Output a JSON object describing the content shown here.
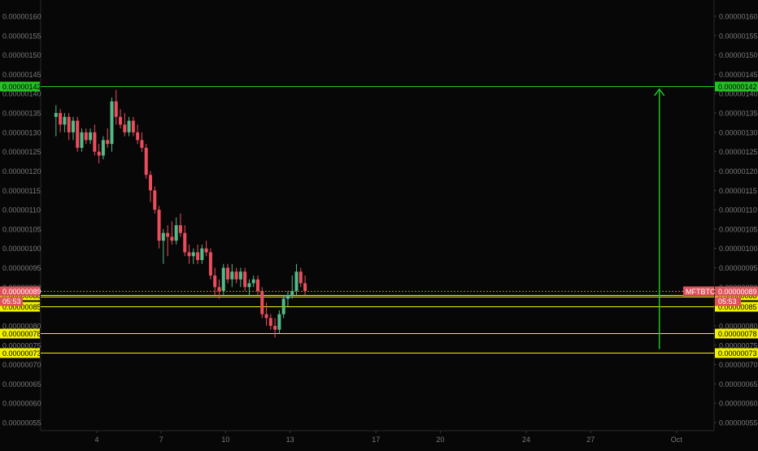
{
  "chart_data": {
    "type": "candlestick",
    "symbol": "MFTBTC",
    "countdown": "05:53",
    "price_axis": {
      "min": 5e-07,
      "max": 1.62e-06,
      "ticks": [
        "0.00000055",
        "0.00000060",
        "0.00000065",
        "0.00000070",
        "0.00000075",
        "0.00000080",
        "0.00000085",
        "0.00000090",
        "0.00000095",
        "0.00000100",
        "0.00000105",
        "0.00000110",
        "0.00000115",
        "0.00000120",
        "0.00000125",
        "0.00000130",
        "0.00000135",
        "0.00000140",
        "0.00000145",
        "0.00000150",
        "0.00000155",
        "0.00000160"
      ]
    },
    "time_axis": {
      "labels": [
        {
          "text": "4",
          "day": 4
        },
        {
          "text": "7",
          "day": 7
        },
        {
          "text": "10",
          "day": 10
        },
        {
          "text": "13",
          "day": 13
        },
        {
          "text": "17",
          "day": 17
        },
        {
          "text": "20",
          "day": 20
        },
        {
          "text": "24",
          "day": 24
        },
        {
          "text": "27",
          "day": 27
        },
        {
          "text": "Oct",
          "day": 31
        }
      ]
    },
    "current_price": {
      "label": "0.00000089",
      "value": 8.9e-07
    },
    "levels": [
      {
        "label": "0.00000142",
        "value": 1.42e-06,
        "color": "#22c322",
        "text_color": "#000000"
      },
      {
        "label": "0.00000088",
        "value": 8.8e-07,
        "color": "#f2f200",
        "text_color": "#000000"
      },
      {
        "label": "0.00000085",
        "value": 8.5e-07,
        "color": "#f2f200",
        "text_color": "#000000"
      },
      {
        "label": "0.00000078",
        "value": 7.8e-07,
        "color": "#f2f200",
        "text_color": "#000000"
      },
      {
        "label": "0.00000073",
        "value": 7.3e-07,
        "color": "#f2f200",
        "text_color": "#000000"
      }
    ],
    "arrow": {
      "day_x": 30.2,
      "from": 7.4e-07,
      "to": 1.42e-06,
      "color": "#22c322"
    },
    "candles": [
      {
        "t": 2.1,
        "o": 134,
        "h": 137,
        "l": 129,
        "c": 135
      },
      {
        "t": 2.3,
        "o": 135,
        "h": 136,
        "l": 130,
        "c": 132
      },
      {
        "t": 2.5,
        "o": 132,
        "h": 135,
        "l": 130,
        "c": 134
      },
      {
        "t": 2.7,
        "o": 134,
        "h": 135,
        "l": 128,
        "c": 130
      },
      {
        "t": 2.9,
        "o": 130,
        "h": 134,
        "l": 128,
        "c": 133
      },
      {
        "t": 3.1,
        "o": 133,
        "h": 134,
        "l": 125,
        "c": 126
      },
      {
        "t": 3.3,
        "o": 126,
        "h": 131,
        "l": 125,
        "c": 130
      },
      {
        "t": 3.5,
        "o": 130,
        "h": 131,
        "l": 127,
        "c": 128
      },
      {
        "t": 3.7,
        "o": 128,
        "h": 131,
        "l": 127,
        "c": 130
      },
      {
        "t": 3.9,
        "o": 130,
        "h": 132,
        "l": 124,
        "c": 125
      },
      {
        "t": 4.1,
        "o": 125,
        "h": 127,
        "l": 122,
        "c": 124
      },
      {
        "t": 4.3,
        "o": 124,
        "h": 129,
        "l": 123,
        "c": 128
      },
      {
        "t": 4.5,
        "o": 128,
        "h": 131,
        "l": 126,
        "c": 127
      },
      {
        "t": 4.7,
        "o": 127,
        "h": 139,
        "l": 125,
        "c": 138
      },
      {
        "t": 4.9,
        "o": 138,
        "h": 141,
        "l": 132,
        "c": 134
      },
      {
        "t": 5.1,
        "o": 134,
        "h": 136,
        "l": 131,
        "c": 132
      },
      {
        "t": 5.3,
        "o": 132,
        "h": 135,
        "l": 129,
        "c": 130
      },
      {
        "t": 5.5,
        "o": 130,
        "h": 134,
        "l": 129,
        "c": 133
      },
      {
        "t": 5.7,
        "o": 133,
        "h": 134,
        "l": 129,
        "c": 130
      },
      {
        "t": 5.9,
        "o": 130,
        "h": 132,
        "l": 127,
        "c": 128
      },
      {
        "t": 6.1,
        "o": 128,
        "h": 130,
        "l": 125,
        "c": 126
      },
      {
        "t": 6.3,
        "o": 126,
        "h": 127,
        "l": 118,
        "c": 119
      },
      {
        "t": 6.5,
        "o": 119,
        "h": 120,
        "l": 112,
        "c": 115
      },
      {
        "t": 6.7,
        "o": 115,
        "h": 116,
        "l": 109,
        "c": 110
      },
      {
        "t": 6.9,
        "o": 110,
        "h": 111,
        "l": 100,
        "c": 102
      },
      {
        "t": 7.1,
        "o": 102,
        "h": 105,
        "l": 96,
        "c": 104
      },
      {
        "t": 7.3,
        "o": 104,
        "h": 106,
        "l": 98,
        "c": 103
      },
      {
        "t": 7.5,
        "o": 103,
        "h": 107,
        "l": 101,
        "c": 102
      },
      {
        "t": 7.7,
        "o": 102,
        "h": 108,
        "l": 101,
        "c": 106
      },
      {
        "t": 7.9,
        "o": 106,
        "h": 109,
        "l": 103,
        "c": 104
      },
      {
        "t": 8.1,
        "o": 104,
        "h": 106,
        "l": 98,
        "c": 99
      },
      {
        "t": 8.3,
        "o": 99,
        "h": 101,
        "l": 96,
        "c": 98
      },
      {
        "t": 8.5,
        "o": 98,
        "h": 100,
        "l": 96,
        "c": 99
      },
      {
        "t": 8.7,
        "o": 99,
        "h": 101,
        "l": 96,
        "c": 97
      },
      {
        "t": 8.9,
        "o": 97,
        "h": 101,
        "l": 96,
        "c": 100
      },
      {
        "t": 9.1,
        "o": 100,
        "h": 102,
        "l": 98,
        "c": 99
      },
      {
        "t": 9.3,
        "o": 99,
        "h": 100,
        "l": 92,
        "c": 93
      },
      {
        "t": 9.5,
        "o": 93,
        "h": 95,
        "l": 88,
        "c": 90
      },
      {
        "t": 9.7,
        "o": 90,
        "h": 92,
        "l": 87,
        "c": 89
      },
      {
        "t": 9.9,
        "o": 89,
        "h": 96,
        "l": 88,
        "c": 95
      },
      {
        "t": 10.1,
        "o": 95,
        "h": 96,
        "l": 91,
        "c": 92
      },
      {
        "t": 10.3,
        "o": 92,
        "h": 96,
        "l": 90,
        "c": 94
      },
      {
        "t": 10.5,
        "o": 94,
        "h": 95,
        "l": 91,
        "c": 92
      },
      {
        "t": 10.7,
        "o": 92,
        "h": 95,
        "l": 90,
        "c": 94
      },
      {
        "t": 10.9,
        "o": 94,
        "h": 95,
        "l": 89,
        "c": 90
      },
      {
        "t": 11.1,
        "o": 90,
        "h": 92,
        "l": 88,
        "c": 91
      },
      {
        "t": 11.3,
        "o": 91,
        "h": 93,
        "l": 90,
        "c": 92
      },
      {
        "t": 11.5,
        "o": 92,
        "h": 93,
        "l": 88,
        "c": 89
      },
      {
        "t": 11.7,
        "o": 89,
        "h": 90,
        "l": 82,
        "c": 83
      },
      {
        "t": 11.9,
        "o": 83,
        "h": 86,
        "l": 80,
        "c": 82
      },
      {
        "t": 12.1,
        "o": 82,
        "h": 83,
        "l": 79,
        "c": 80
      },
      {
        "t": 12.3,
        "o": 80,
        "h": 82,
        "l": 77,
        "c": 79
      },
      {
        "t": 12.5,
        "o": 79,
        "h": 84,
        "l": 78,
        "c": 83
      },
      {
        "t": 12.7,
        "o": 83,
        "h": 88,
        "l": 82,
        "c": 87
      },
      {
        "t": 12.9,
        "o": 87,
        "h": 89,
        "l": 85,
        "c": 88
      },
      {
        "t": 13.1,
        "o": 88,
        "h": 93,
        "l": 87,
        "c": 89
      },
      {
        "t": 13.3,
        "o": 89,
        "h": 96,
        "l": 88,
        "c": 94
      },
      {
        "t": 13.5,
        "o": 94,
        "h": 95,
        "l": 90,
        "c": 91
      },
      {
        "t": 13.7,
        "o": 91,
        "h": 93,
        "l": 88,
        "c": 89
      }
    ]
  }
}
